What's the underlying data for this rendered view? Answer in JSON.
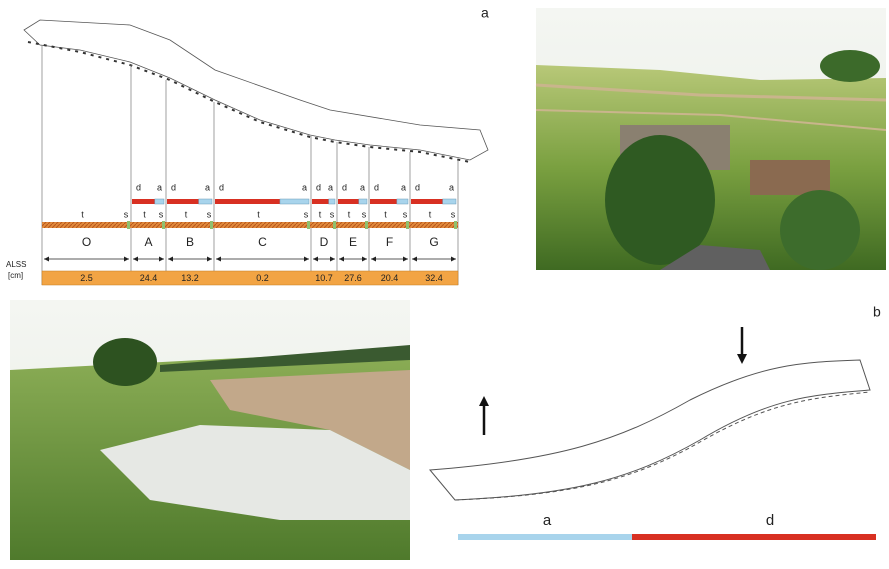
{
  "panel_a": {
    "label": "a",
    "row_label": [
      "ALSS",
      "[cm]"
    ],
    "segments": [
      {
        "name": "O",
        "value": 2.5,
        "top": [],
        "bottom": [
          "t",
          "s"
        ]
      },
      {
        "name": "A",
        "value": 24.4,
        "top": [
          "d",
          "a"
        ],
        "bottom": [
          "t",
          "s"
        ]
      },
      {
        "name": "B",
        "value": 13.2,
        "top": [
          "d",
          "a"
        ],
        "bottom": [
          "t",
          "s"
        ]
      },
      {
        "name": "C",
        "value": 0.2,
        "top": [
          "d",
          "a"
        ],
        "bottom": [
          "t",
          "s"
        ]
      },
      {
        "name": "D",
        "value": 10.7,
        "top": [
          "d",
          "a"
        ],
        "bottom": [
          "t",
          "s"
        ]
      },
      {
        "name": "E",
        "value": 27.6,
        "top": [
          "d",
          "a"
        ],
        "bottom": [
          "t",
          "s"
        ]
      },
      {
        "name": "F",
        "value": 20.4,
        "top": [
          "d",
          "a"
        ],
        "bottom": [
          "t",
          "s"
        ]
      },
      {
        "name": "G",
        "value": 32.4,
        "top": [
          "d",
          "a"
        ],
        "bottom": [
          "t",
          "s"
        ]
      }
    ]
  },
  "panel_b": {
    "label": "b",
    "bar_labels": [
      "a",
      "d"
    ]
  }
}
